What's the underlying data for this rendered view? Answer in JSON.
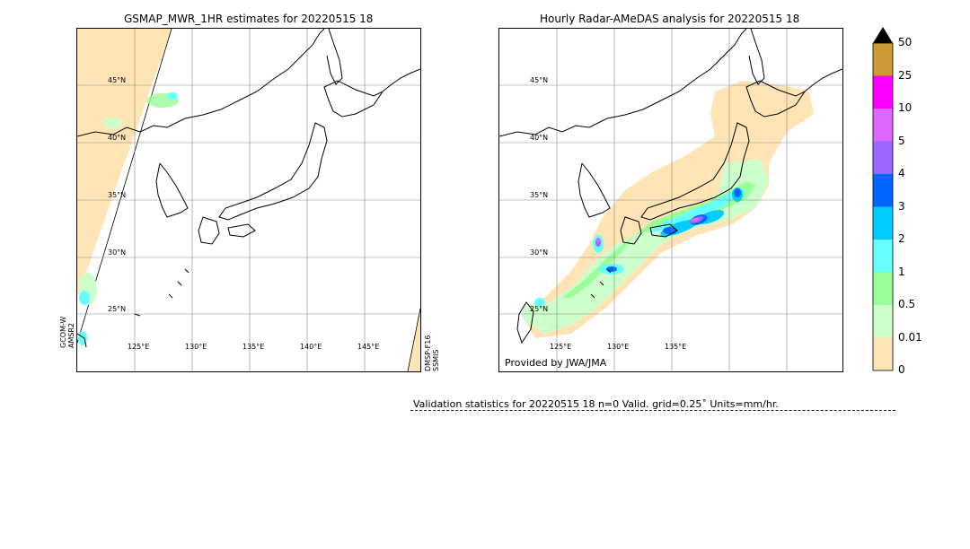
{
  "left_panel": {
    "title": "GSMAP_MWR_1HR estimates for 20220515 18",
    "lat_labels": [
      "45°N",
      "40°N",
      "35°N",
      "30°N",
      "25°N"
    ],
    "lon_labels": [
      "125°E",
      "130°E",
      "135°E",
      "140°E",
      "145°E"
    ],
    "sensor_left_line1": "GCOM-W",
    "sensor_left_line2": "AMSR2",
    "sensor_right_line1": "DMSP-F16",
    "sensor_right_line2": "SSMIS"
  },
  "right_panel": {
    "title": "Hourly Radar-AMeDAS analysis for 20220515 18",
    "lat_labels": [
      "45°N",
      "40°N",
      "35°N",
      "30°N",
      "25°N"
    ],
    "lon_labels": [
      "125°E",
      "130°E",
      "135°E"
    ],
    "credit": "Provided by JWA/JMA"
  },
  "colorbar": {
    "levels": [
      "50",
      "25",
      "10",
      "5",
      "4",
      "3",
      "2",
      "1",
      "0.5",
      "0.01",
      "0"
    ],
    "colors": [
      "#cc9933",
      "#ff00ff",
      "#dd66ff",
      "#9966ff",
      "#0066ff",
      "#00ccff",
      "#66ffff",
      "#99ff99",
      "#ccffcc",
      "#ffe4b5"
    ],
    "extend_color": "#000000"
  },
  "validation": {
    "text": "Validation statistics for 20220515 18  n=0 Valid. grid=0.25˚ Units=mm/hr."
  }
}
